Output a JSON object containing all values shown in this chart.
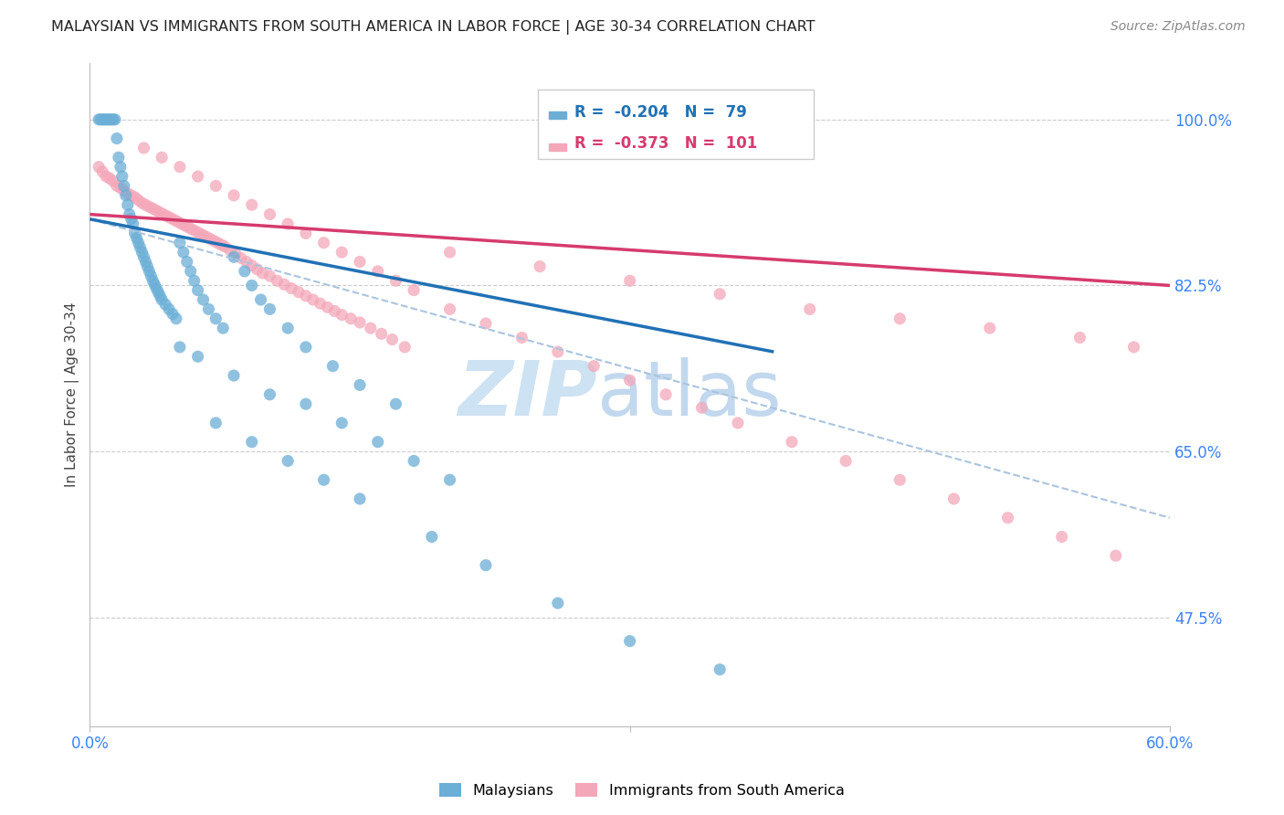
{
  "title": "MALAYSIAN VS IMMIGRANTS FROM SOUTH AMERICA IN LABOR FORCE | AGE 30-34 CORRELATION CHART",
  "source": "Source: ZipAtlas.com",
  "ylabel": "In Labor Force | Age 30-34",
  "xlim": [
    0.0,
    0.6
  ],
  "ylim": [
    0.36,
    1.06
  ],
  "yticks": [
    0.475,
    0.65,
    0.825,
    1.0
  ],
  "ytick_labels": [
    "47.5%",
    "65.0%",
    "82.5%",
    "100.0%"
  ],
  "R_blue": -0.204,
  "N_blue": 79,
  "R_pink": -0.373,
  "N_pink": 101,
  "blue_color": "#6baed6",
  "pink_color": "#f4a7b9",
  "blue_line_color": "#2171b5",
  "pink_line_color": "#d63b6e",
  "dashed_line_color": "#aac4de",
  "watermark_text_zip": "ZIP",
  "watermark_text_atlas": "atlas",
  "blue_scatter_x": [
    0.005,
    0.006,
    0.007,
    0.008,
    0.009,
    0.01,
    0.011,
    0.012,
    0.013,
    0.014,
    0.015,
    0.016,
    0.017,
    0.018,
    0.019,
    0.02,
    0.021,
    0.022,
    0.023,
    0.024,
    0.025,
    0.026,
    0.027,
    0.028,
    0.029,
    0.03,
    0.031,
    0.032,
    0.033,
    0.034,
    0.035,
    0.036,
    0.037,
    0.038,
    0.039,
    0.04,
    0.042,
    0.044,
    0.046,
    0.048,
    0.05,
    0.052,
    0.054,
    0.056,
    0.058,
    0.06,
    0.063,
    0.066,
    0.07,
    0.074,
    0.08,
    0.086,
    0.09,
    0.095,
    0.1,
    0.11,
    0.12,
    0.135,
    0.15,
    0.17,
    0.05,
    0.06,
    0.08,
    0.1,
    0.12,
    0.14,
    0.16,
    0.18,
    0.2,
    0.07,
    0.09,
    0.11,
    0.13,
    0.15,
    0.19,
    0.22,
    0.26,
    0.3,
    0.35
  ],
  "blue_scatter_y": [
    1.0,
    1.0,
    1.0,
    1.0,
    1.0,
    1.0,
    1.0,
    1.0,
    1.0,
    1.0,
    0.98,
    0.96,
    0.95,
    0.94,
    0.93,
    0.92,
    0.91,
    0.9,
    0.895,
    0.89,
    0.88,
    0.875,
    0.87,
    0.865,
    0.86,
    0.855,
    0.85,
    0.845,
    0.84,
    0.835,
    0.83,
    0.826,
    0.822,
    0.818,
    0.814,
    0.81,
    0.805,
    0.8,
    0.795,
    0.79,
    0.87,
    0.86,
    0.85,
    0.84,
    0.83,
    0.82,
    0.81,
    0.8,
    0.79,
    0.78,
    0.855,
    0.84,
    0.825,
    0.81,
    0.8,
    0.78,
    0.76,
    0.74,
    0.72,
    0.7,
    0.76,
    0.75,
    0.73,
    0.71,
    0.7,
    0.68,
    0.66,
    0.64,
    0.62,
    0.68,
    0.66,
    0.64,
    0.62,
    0.6,
    0.56,
    0.53,
    0.49,
    0.45,
    0.42
  ],
  "pink_scatter_x": [
    0.005,
    0.007,
    0.009,
    0.011,
    0.013,
    0.015,
    0.017,
    0.019,
    0.021,
    0.023,
    0.025,
    0.027,
    0.029,
    0.031,
    0.033,
    0.035,
    0.037,
    0.039,
    0.041,
    0.043,
    0.045,
    0.047,
    0.049,
    0.051,
    0.053,
    0.055,
    0.057,
    0.059,
    0.061,
    0.063,
    0.065,
    0.067,
    0.069,
    0.071,
    0.073,
    0.075,
    0.078,
    0.081,
    0.084,
    0.087,
    0.09,
    0.093,
    0.096,
    0.1,
    0.104,
    0.108,
    0.112,
    0.116,
    0.12,
    0.124,
    0.128,
    0.132,
    0.136,
    0.14,
    0.145,
    0.15,
    0.156,
    0.162,
    0.168,
    0.175,
    0.03,
    0.04,
    0.05,
    0.06,
    0.07,
    0.08,
    0.09,
    0.1,
    0.11,
    0.12,
    0.13,
    0.14,
    0.15,
    0.16,
    0.17,
    0.18,
    0.2,
    0.22,
    0.24,
    0.26,
    0.28,
    0.3,
    0.32,
    0.34,
    0.36,
    0.39,
    0.42,
    0.45,
    0.48,
    0.51,
    0.54,
    0.57,
    0.2,
    0.25,
    0.3,
    0.35,
    0.4,
    0.45,
    0.5,
    0.55,
    0.58
  ],
  "pink_scatter_y": [
    0.95,
    0.945,
    0.94,
    0.938,
    0.935,
    0.93,
    0.928,
    0.925,
    0.922,
    0.92,
    0.918,
    0.915,
    0.912,
    0.91,
    0.908,
    0.906,
    0.904,
    0.902,
    0.9,
    0.898,
    0.896,
    0.894,
    0.892,
    0.89,
    0.888,
    0.886,
    0.884,
    0.882,
    0.88,
    0.878,
    0.876,
    0.874,
    0.872,
    0.87,
    0.868,
    0.866,
    0.862,
    0.858,
    0.854,
    0.85,
    0.846,
    0.842,
    0.838,
    0.835,
    0.83,
    0.826,
    0.822,
    0.818,
    0.814,
    0.81,
    0.806,
    0.802,
    0.798,
    0.794,
    0.79,
    0.786,
    0.78,
    0.774,
    0.768,
    0.76,
    0.97,
    0.96,
    0.95,
    0.94,
    0.93,
    0.92,
    0.91,
    0.9,
    0.89,
    0.88,
    0.87,
    0.86,
    0.85,
    0.84,
    0.83,
    0.82,
    0.8,
    0.785,
    0.77,
    0.755,
    0.74,
    0.725,
    0.71,
    0.696,
    0.68,
    0.66,
    0.64,
    0.62,
    0.6,
    0.58,
    0.56,
    0.54,
    0.86,
    0.845,
    0.83,
    0.816,
    0.8,
    0.79,
    0.78,
    0.77,
    0.76
  ],
  "blue_trend_x": [
    0.0,
    0.38
  ],
  "blue_trend_y": [
    0.895,
    0.755
  ],
  "pink_trend_x": [
    0.0,
    0.6
  ],
  "pink_trend_y": [
    0.9,
    0.825
  ],
  "dash_trend_x": [
    0.0,
    0.6
  ],
  "dash_trend_y": [
    0.895,
    0.58
  ]
}
